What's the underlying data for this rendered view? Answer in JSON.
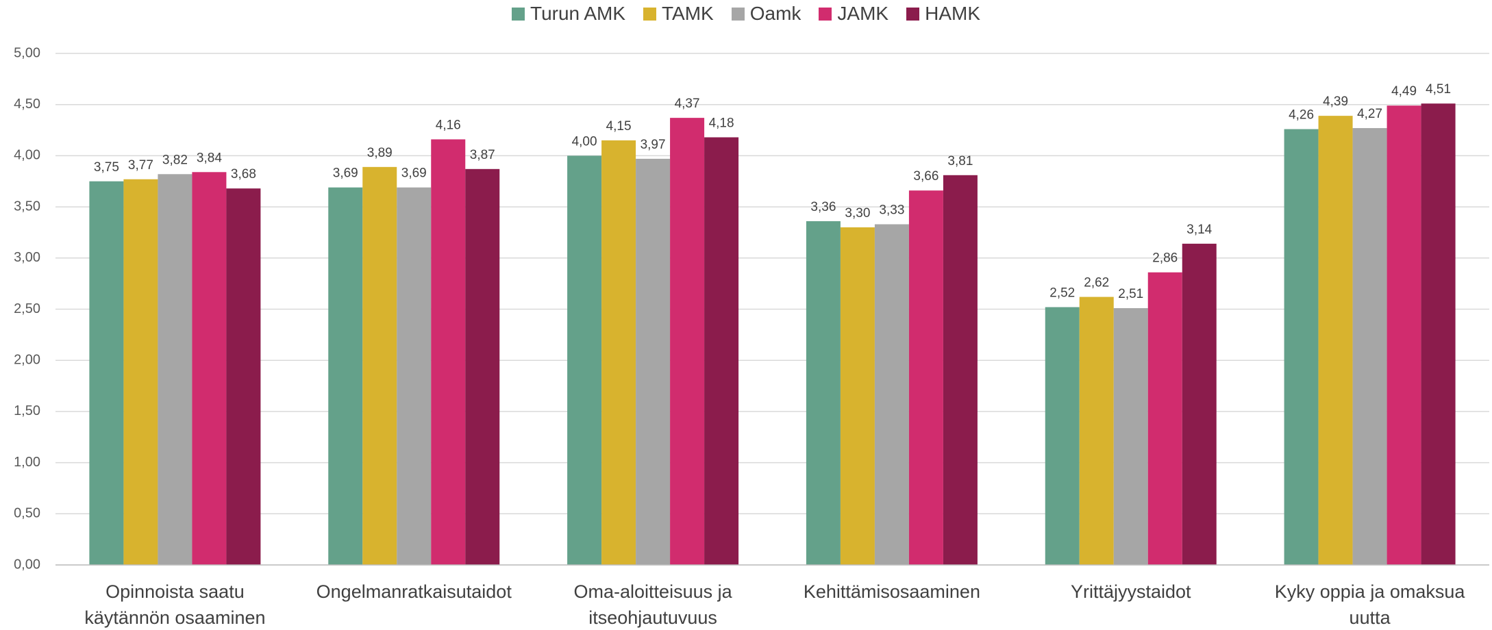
{
  "chart_data": {
    "type": "bar",
    "categories": [
      "Opinnoista saatu käytännön osaaminen",
      "Ongelmanratkaisutaidot",
      "Oma-aloitteisuus ja itseohjautuvuus",
      "Kehittämisosaaminen",
      "Yrittäjyystaidot",
      "Kyky oppia ja omaksua uutta"
    ],
    "series": [
      {
        "name": "Turun AMK",
        "color": "#64a18a",
        "values": [
          3.75,
          3.69,
          4.0,
          3.36,
          2.52,
          4.26
        ],
        "value_labels": [
          "3,75",
          "3,69",
          "4,00",
          "3,36",
          "2,52",
          "4,26"
        ]
      },
      {
        "name": "TAMK",
        "color": "#d8b32e",
        "values": [
          3.77,
          3.89,
          4.15,
          3.3,
          2.62,
          4.39
        ],
        "value_labels": [
          "3,77",
          "3,89",
          "4,15",
          "3,30",
          "2,62",
          "4,39"
        ]
      },
      {
        "name": "Oamk",
        "color": "#a6a6a6",
        "values": [
          3.82,
          3.69,
          3.97,
          3.33,
          2.51,
          4.27
        ],
        "value_labels": [
          "3,82",
          "3,69",
          "3,97",
          "3,33",
          "2,51",
          "4,27"
        ]
      },
      {
        "name": "JAMK",
        "color": "#d12c6e",
        "values": [
          3.84,
          4.16,
          4.37,
          3.66,
          2.86,
          4.49
        ],
        "value_labels": [
          "3,84",
          "4,16",
          "4,37",
          "3,66",
          "2,86",
          "4,49"
        ]
      },
      {
        "name": "HAMK",
        "color": "#8b1c4c",
        "values": [
          3.68,
          3.87,
          4.18,
          3.81,
          3.14,
          4.51
        ],
        "value_labels": [
          "3,68",
          "3,87",
          "4,18",
          "3,81",
          "3,14",
          "4,51"
        ]
      }
    ],
    "ylim": [
      0,
      5
    ],
    "yticks": [
      {
        "value": 0,
        "label": "0,00"
      },
      {
        "value": 0.5,
        "label": "0,50"
      },
      {
        "value": 1,
        "label": "1,00"
      },
      {
        "value": 1.5,
        "label": "1,50"
      },
      {
        "value": 2,
        "label": "2,00"
      },
      {
        "value": 2.5,
        "label": "2,50"
      },
      {
        "value": 3,
        "label": "3,00"
      },
      {
        "value": 3.5,
        "label": "3,50"
      },
      {
        "value": 4,
        "label": "4,00"
      },
      {
        "value": 4.5,
        "label": "4,50"
      },
      {
        "value": 5,
        "label": "5,00"
      }
    ],
    "grid": true,
    "legend": "top"
  }
}
